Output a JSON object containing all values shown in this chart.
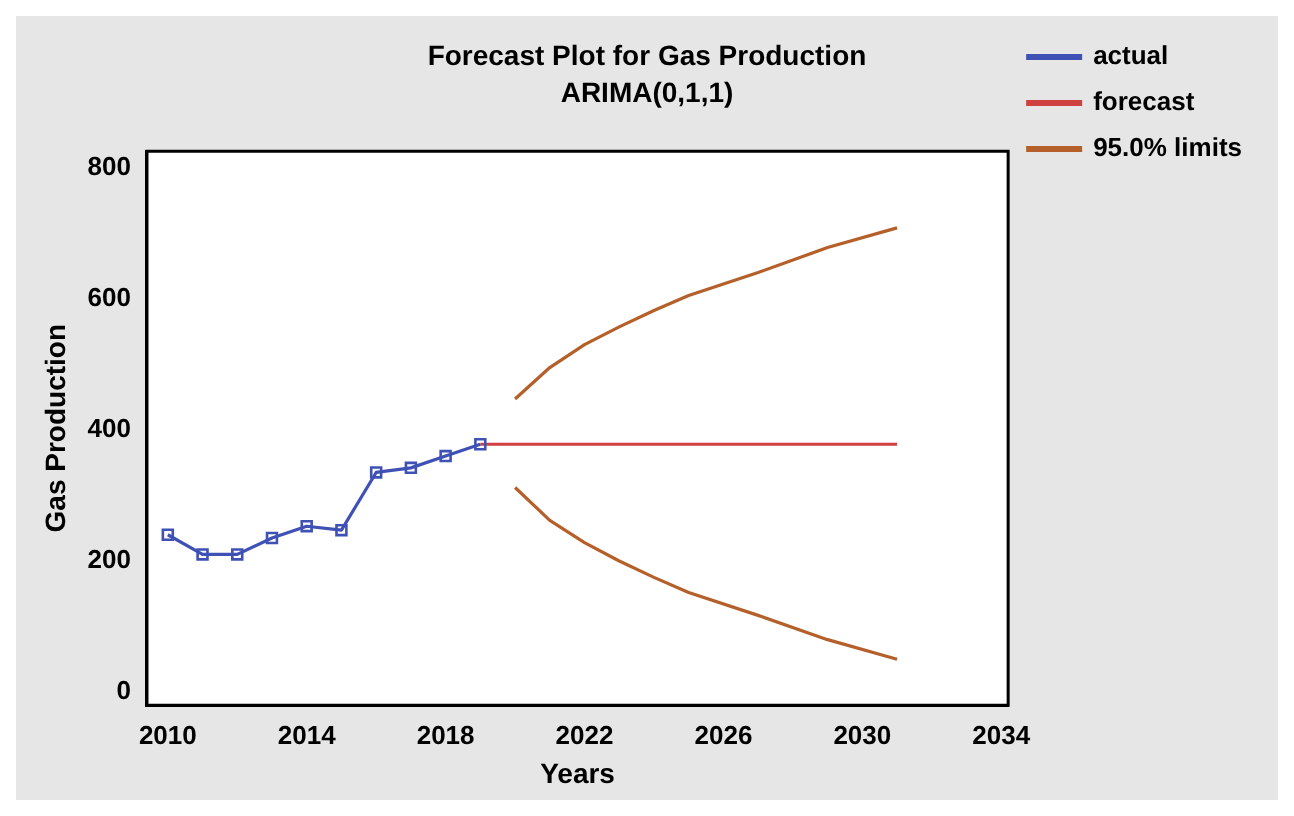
{
  "chart_data": {
    "type": "line",
    "title": "Forecast Plot for Gas Production",
    "subtitle": "ARIMA(0,1,1)",
    "xlabel": "Years",
    "ylabel": "Gas Production",
    "xlim": [
      2009.4,
      2034.2
    ],
    "xticks": [
      2010,
      2014,
      2018,
      2022,
      2026,
      2030,
      2034
    ],
    "ylim": [
      -20,
      825
    ],
    "yticks": [
      0,
      200,
      400,
      600,
      800
    ],
    "grid": false,
    "legend": "right",
    "series": [
      {
        "name": "actual",
        "color": "#3f51b5",
        "marker": "square",
        "x": [
          2010,
          2011,
          2012,
          2013,
          2014,
          2015,
          2016,
          2017,
          2018,
          2019
        ],
        "values": [
          240,
          210,
          210,
          235,
          253,
          247,
          335,
          342,
          360,
          378
        ]
      },
      {
        "name": "forecast",
        "color": "#d04040",
        "marker": "none",
        "x": [
          2019,
          2031
        ],
        "values": [
          378,
          378
        ]
      },
      {
        "name": "95.0% limits",
        "color": "#b5602a",
        "marker": "none",
        "x": [
          2020,
          2021,
          2022,
          2023,
          2024,
          2025,
          2027,
          2029,
          2031
        ],
        "values": [
          447,
          495,
          530,
          557,
          582,
          605,
          640,
          678,
          708
        ]
      },
      {
        "color": "#b5602a",
        "marker": "none",
        "x": [
          2020,
          2021,
          2022,
          2023,
          2024,
          2025,
          2027,
          2029,
          2031
        ],
        "values": [
          312,
          262,
          228,
          200,
          175,
          152,
          117,
          80,
          50
        ]
      }
    ]
  }
}
